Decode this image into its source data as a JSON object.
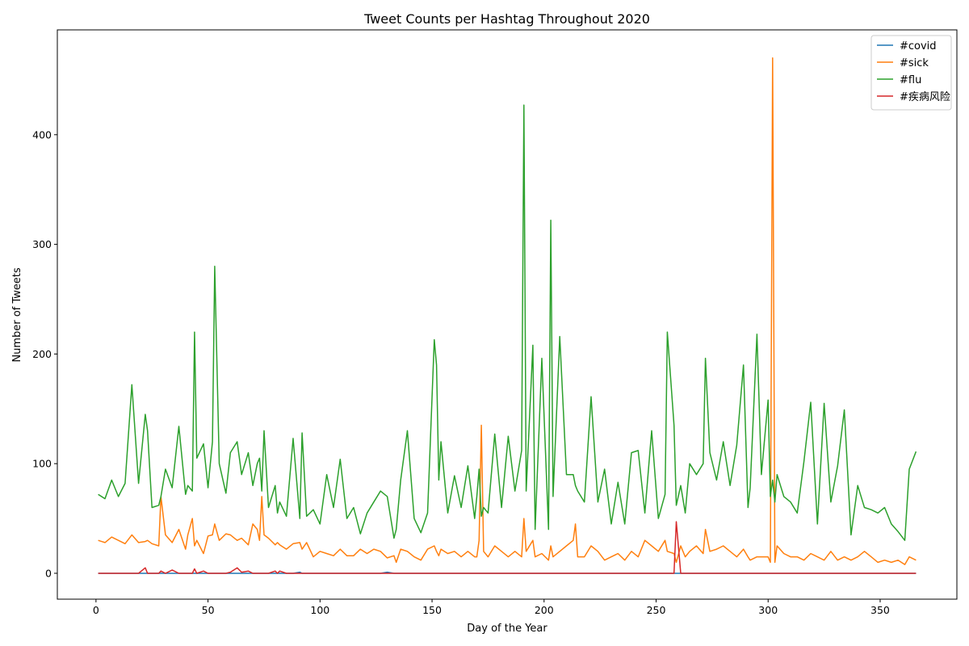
{
  "chart_data": {
    "type": "line",
    "title": "Tweet Counts per Hashtag Throughout 2020",
    "xlabel": "Day of the Year",
    "ylabel": "Number of Tweets",
    "xlim": [
      -17.25,
      384.25
    ],
    "ylim": [
      -23.6,
      495.6
    ],
    "x_ticks": [
      0,
      50,
      100,
      150,
      200,
      250,
      300,
      350
    ],
    "y_ticks": [
      0,
      100,
      200,
      300,
      400
    ],
    "grid": false,
    "legend_position": "top-right",
    "x": [
      1,
      4,
      7,
      10,
      13,
      16,
      19,
      22,
      23,
      25,
      28,
      29,
      31,
      34,
      37,
      40,
      41,
      43,
      44,
      45,
      48,
      50,
      52,
      53,
      55,
      58,
      60,
      63,
      65,
      68,
      70,
      72,
      73,
      74,
      75,
      77,
      80,
      81,
      82,
      85,
      88,
      91,
      92,
      94,
      97,
      100,
      103,
      106,
      109,
      112,
      115,
      118,
      121,
      124,
      127,
      130,
      133,
      134,
      136,
      139,
      142,
      145,
      148,
      151,
      152,
      153,
      154,
      157,
      160,
      163,
      166,
      169,
      170,
      171,
      172,
      173,
      175,
      178,
      181,
      184,
      187,
      190,
      191,
      192,
      195,
      196,
      199,
      202,
      203,
      204,
      207,
      210,
      213,
      214,
      215,
      218,
      221,
      224,
      227,
      230,
      233,
      236,
      239,
      242,
      245,
      248,
      251,
      254,
      255,
      258,
      259,
      261,
      263,
      265,
      268,
      271,
      272,
      274,
      277,
      280,
      283,
      286,
      289,
      291,
      292,
      295,
      297,
      300,
      301,
      302,
      303,
      304,
      307,
      310,
      313,
      316,
      319,
      322,
      325,
      328,
      331,
      334,
      337,
      340,
      343,
      346,
      349,
      352,
      355,
      358,
      361,
      363,
      366
    ],
    "series": [
      {
        "name": "#covid",
        "color": "#1f77b4",
        "values": [
          0,
          0,
          0,
          0,
          0,
          0,
          0,
          0,
          0,
          0,
          0,
          0,
          0,
          0,
          0,
          0,
          0,
          0,
          0,
          0,
          0,
          0,
          0,
          0,
          0,
          0,
          0,
          0,
          0,
          0,
          0,
          0,
          0,
          0,
          0,
          0,
          0,
          0,
          0,
          0,
          0,
          1,
          0,
          0,
          0,
          0,
          0,
          0,
          0,
          0,
          0,
          0,
          0,
          0,
          0,
          1,
          0,
          0,
          0,
          0,
          0,
          0,
          0,
          0,
          0,
          0,
          0,
          0,
          0,
          0,
          0,
          0,
          0,
          0,
          0,
          0,
          0,
          0,
          0,
          0,
          0,
          0,
          0,
          0,
          0,
          0,
          0,
          0,
          0,
          0,
          0,
          0,
          0,
          0,
          0,
          0,
          0,
          0,
          0,
          0,
          0,
          0,
          0,
          0,
          0,
          0,
          0,
          0,
          0,
          0,
          0,
          0,
          0,
          0,
          0,
          0,
          0,
          0,
          0,
          0,
          0,
          0,
          0,
          0,
          0,
          0,
          0,
          0,
          0,
          0,
          0,
          0,
          0,
          0,
          0,
          0,
          0,
          0,
          0,
          0,
          0,
          0,
          0,
          0,
          0,
          0,
          0,
          0,
          0,
          0,
          0,
          0,
          0
        ]
      },
      {
        "name": "#sick",
        "color": "#ff7f0e",
        "values": [
          30,
          28,
          33,
          30,
          27,
          35,
          28,
          29,
          30,
          27,
          25,
          70,
          35,
          28,
          40,
          22,
          35,
          50,
          25,
          30,
          18,
          34,
          35,
          45,
          30,
          36,
          35,
          30,
          32,
          26,
          45,
          40,
          30,
          70,
          35,
          32,
          26,
          28,
          26,
          22,
          27,
          28,
          22,
          28,
          15,
          20,
          18,
          16,
          22,
          16,
          16,
          22,
          18,
          22,
          20,
          14,
          16,
          10,
          22,
          20,
          15,
          12,
          22,
          25,
          20,
          16,
          22,
          18,
          20,
          15,
          20,
          15,
          15,
          30,
          135,
          20,
          15,
          25,
          20,
          15,
          20,
          15,
          50,
          20,
          30,
          15,
          18,
          12,
          25,
          15,
          20,
          25,
          30,
          45,
          15,
          15,
          25,
          20,
          12,
          15,
          18,
          12,
          20,
          15,
          30,
          25,
          20,
          30,
          20,
          18,
          10,
          25,
          15,
          20,
          25,
          18,
          40,
          20,
          22,
          25,
          20,
          15,
          22,
          15,
          12,
          15,
          15,
          15,
          10,
          470,
          10,
          25,
          18,
          15,
          15,
          12,
          18,
          15,
          12,
          20,
          12,
          15,
          12,
          15,
          20,
          15,
          10,
          12,
          10,
          12,
          8,
          15,
          12
        ]
      },
      {
        "name": "#flu",
        "color": "#2ca02c",
        "values": [
          72,
          68,
          85,
          70,
          82,
          172,
          82,
          145,
          130,
          60,
          62,
          70,
          95,
          78,
          134,
          72,
          80,
          75,
          220,
          105,
          118,
          78,
          120,
          280,
          100,
          73,
          110,
          120,
          90,
          110,
          80,
          100,
          105,
          75,
          130,
          60,
          80,
          55,
          65,
          52,
          123,
          50,
          128,
          52,
          58,
          45,
          90,
          60,
          104,
          50,
          60,
          36,
          55,
          65,
          75,
          70,
          32,
          40,
          85,
          130,
          50,
          37,
          55,
          213,
          190,
          85,
          120,
          55,
          89,
          60,
          98,
          50,
          70,
          95,
          52,
          60,
          55,
          127,
          60,
          125,
          75,
          112,
          427,
          75,
          208,
          40,
          196,
          40,
          322,
          70,
          216,
          90,
          90,
          80,
          75,
          65,
          161,
          65,
          95,
          45,
          83,
          45,
          110,
          112,
          55,
          130,
          50,
          72,
          220,
          135,
          62,
          80,
          55,
          100,
          90,
          100,
          196,
          110,
          85,
          120,
          80,
          117,
          190,
          60,
          78,
          218,
          90,
          158,
          70,
          85,
          65,
          90,
          70,
          65,
          55,
          102,
          156,
          45,
          155,
          65,
          98,
          149,
          35,
          80,
          60,
          58,
          55,
          60,
          45,
          38,
          30,
          95,
          111
        ]
      },
      {
        "name": "#疾病风险",
        "color": "#d62728",
        "values": [
          0,
          0,
          0,
          0,
          0,
          0,
          0,
          5,
          0,
          0,
          0,
          2,
          0,
          3,
          0,
          0,
          0,
          0,
          4,
          0,
          2,
          0,
          0,
          0,
          0,
          0,
          1,
          5,
          1,
          2,
          0,
          0,
          0,
          0,
          0,
          0,
          2,
          0,
          2,
          0,
          0,
          0,
          0,
          0,
          0,
          0,
          0,
          0,
          0,
          0,
          0,
          0,
          0,
          0,
          0,
          0,
          0,
          0,
          0,
          0,
          0,
          0,
          0,
          0,
          0,
          0,
          0,
          0,
          0,
          0,
          0,
          0,
          0,
          0,
          0,
          0,
          0,
          0,
          0,
          0,
          0,
          0,
          0,
          0,
          0,
          0,
          0,
          0,
          0,
          0,
          0,
          0,
          0,
          0,
          0,
          0,
          0,
          0,
          0,
          0,
          0,
          0,
          0,
          0,
          0,
          0,
          0,
          0,
          0,
          0,
          47,
          0,
          0,
          0,
          0,
          0,
          0,
          0,
          0,
          0,
          0,
          0,
          0,
          0,
          0,
          0,
          0,
          0,
          0,
          0,
          0,
          0,
          0,
          0,
          0,
          0,
          0,
          0,
          0,
          0,
          0,
          0,
          0,
          0,
          0,
          0,
          0,
          0,
          0,
          0,
          0,
          0,
          0
        ]
      }
    ]
  }
}
